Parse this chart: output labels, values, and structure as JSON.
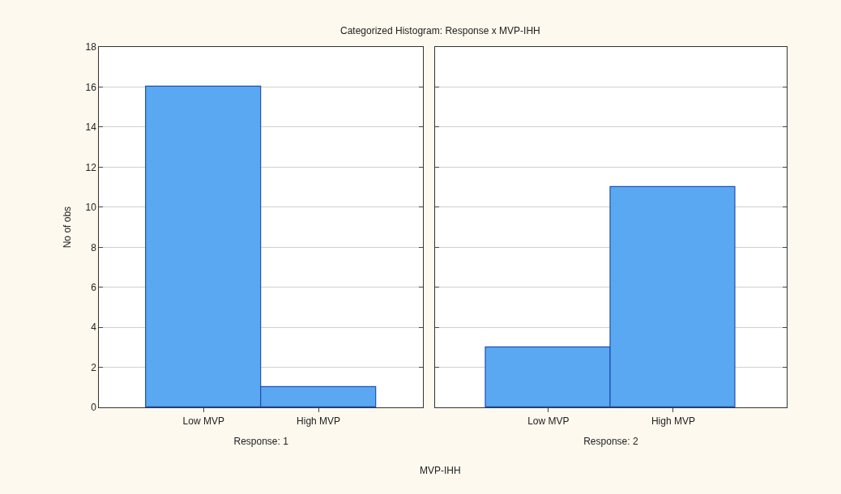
{
  "chart_data": [
    {
      "type": "bar",
      "title": "Categorized Histogram: Response x MVP-IHH",
      "xlabel": "Response: 1",
      "ylabel": "No of obs",
      "categories": [
        "Low MVP",
        "High MVP"
      ],
      "values": [
        16,
        1
      ],
      "color": "#5aa8f2",
      "ylim": [
        0,
        18
      ],
      "yticks": [
        0,
        2,
        4,
        6,
        8,
        10,
        12,
        14,
        16,
        18
      ],
      "grid": "y",
      "annotations": [
        "MVP-IHH"
      ]
    },
    {
      "type": "bar",
      "xlabel": "Response: 2",
      "categories": [
        "Low MVP",
        "High MVP"
      ],
      "values": [
        3,
        11
      ],
      "color": "#5aa8f2",
      "ylim": [
        0,
        18
      ],
      "yticks": [
        0,
        2,
        4,
        6,
        8,
        10,
        12,
        14,
        16,
        18
      ],
      "grid": "y",
      "tick_labels": "x"
    }
  ]
}
